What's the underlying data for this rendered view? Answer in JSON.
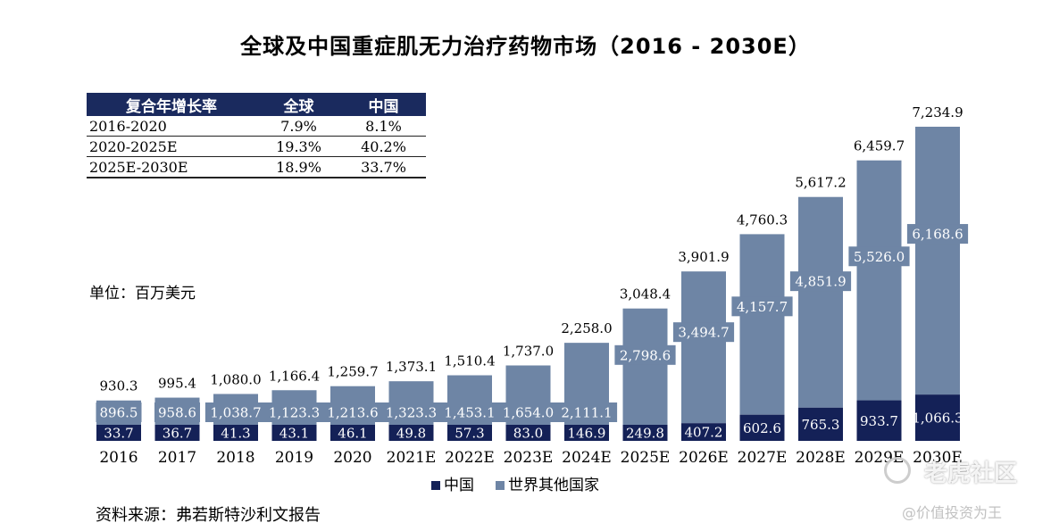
{
  "title": "全球及中国重症肌无力治疗药物市场（2016 - 2030E）",
  "cagr_table": {
    "headers": [
      "复合年增长率",
      "全球",
      "中国"
    ],
    "rows": [
      {
        "period": "2016-2020",
        "global": "7.9%",
        "china": "8.1%"
      },
      {
        "period": "2020-2025E",
        "global": "19.3%",
        "china": "40.2%"
      },
      {
        "period": "2025E-2030E",
        "global": "18.9%",
        "china": "33.7%"
      }
    ]
  },
  "unit_label": "单位：百万美元",
  "source": "资料来源：弗若斯特沙利文报告",
  "watermark": {
    "brand": "老虎社区",
    "handle": "@价值投资为王"
  },
  "colors": {
    "china": "#142157",
    "rest_of_world": "#6e85a5",
    "label_text": "#ffffff"
  },
  "chart_data": {
    "type": "bar",
    "stacked": true,
    "categories": [
      "2016",
      "2017",
      "2018",
      "2019",
      "2020",
      "2021E",
      "2022E",
      "2023E",
      "2024E",
      "2025E",
      "2026E",
      "2027E",
      "2028E",
      "2029E",
      "2030E"
    ],
    "series": [
      {
        "name": "中国",
        "values": [
          33.7,
          36.7,
          41.3,
          43.1,
          46.1,
          49.8,
          57.3,
          83.0,
          146.9,
          249.8,
          407.2,
          602.6,
          765.3,
          933.7,
          1066.3
        ]
      },
      {
        "name": "世界其他国家",
        "values": [
          896.5,
          958.6,
          1038.7,
          1123.3,
          1213.6,
          1323.3,
          1453.1,
          1654.0,
          2111.1,
          2798.6,
          3494.7,
          4157.7,
          4851.9,
          5526.0,
          6168.6
        ]
      }
    ],
    "totals": [
      930.3,
      995.4,
      1080.0,
      1166.4,
      1259.7,
      1373.1,
      1510.4,
      1737.0,
      2258.0,
      3048.4,
      3901.9,
      4760.3,
      5617.2,
      6459.7,
      7234.9
    ],
    "legend_position": "bottom-right",
    "grid": false
  }
}
